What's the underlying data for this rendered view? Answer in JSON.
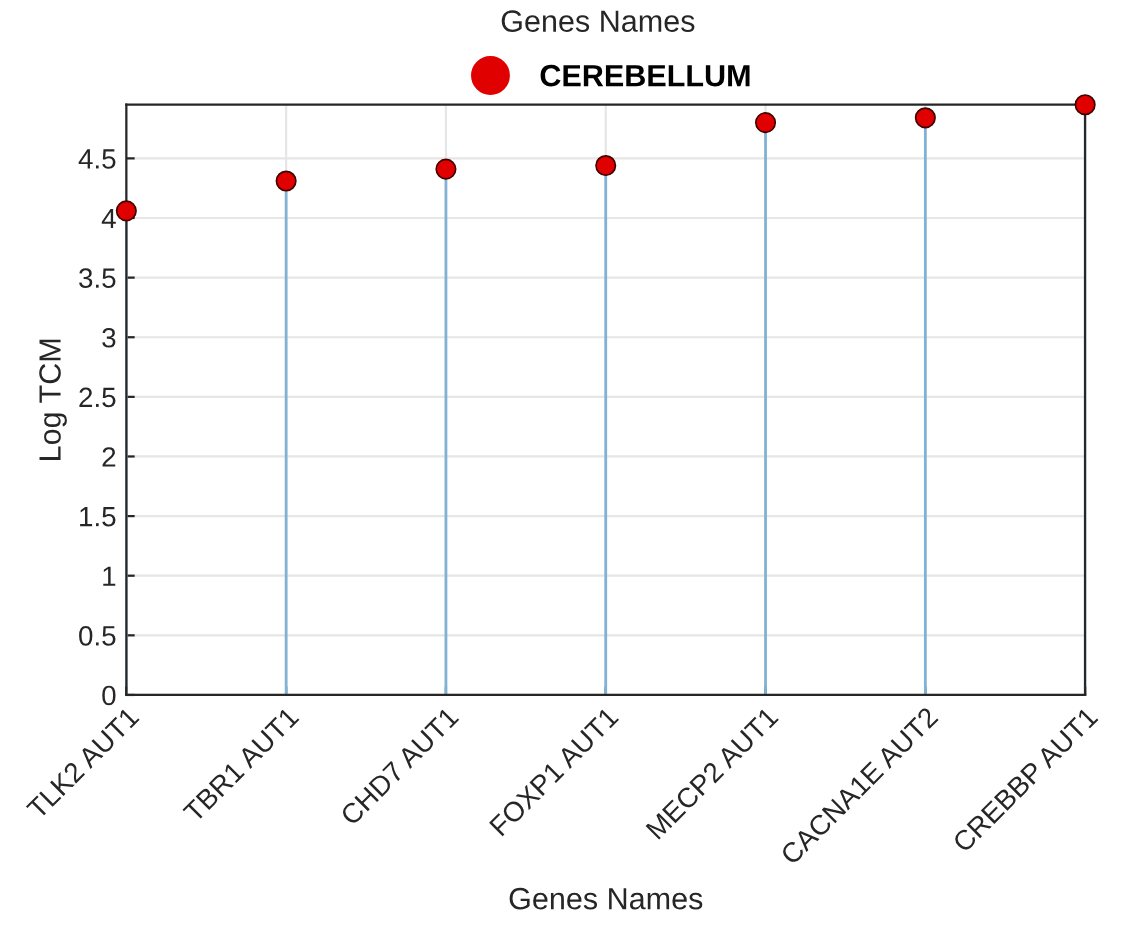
{
  "chart_data": {
    "type": "lollipop",
    "title": "Genes Names",
    "xlabel": "Genes Names",
    "ylabel": "Log TCM",
    "categories": [
      "TLK2 AUT1",
      "TBR1 AUT1",
      "CHD7 AUT1",
      "FOXP1 AUT1",
      "MECP2 AUT1",
      "CACNA1E AUT2",
      "CREBBP AUT1"
    ],
    "series": [
      {
        "name": "CEREBELLUM",
        "color": "#e00000",
        "values": [
          4.06,
          4.31,
          4.41,
          4.44,
          4.8,
          4.84,
          4.95
        ]
      }
    ],
    "ylim": [
      0,
      4.95
    ],
    "yticks": [
      0,
      0.5,
      1,
      1.5,
      2,
      2.5,
      3,
      3.5,
      4,
      4.5
    ],
    "grid": true,
    "legend": "top",
    "marker": "circle"
  }
}
